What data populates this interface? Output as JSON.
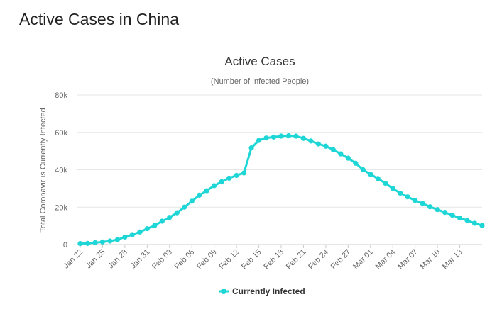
{
  "page": {
    "title": "Active Cases in China"
  },
  "chart_data": {
    "type": "line",
    "title": "Active Cases",
    "subtitle": "(Number of Infected People)",
    "xlabel": "",
    "ylabel": "Total Coronavirus Currently Infected",
    "ylim": [
      0,
      80000
    ],
    "yticks": [
      0,
      20000,
      40000,
      60000,
      80000
    ],
    "ytick_labels": [
      "0",
      "20k",
      "40k",
      "60k",
      "80k"
    ],
    "xtick_labels": [
      "Jan 22",
      "Jan 25",
      "Jan 28",
      "Jan 31",
      "Feb 03",
      "Feb 06",
      "Feb 09",
      "Feb 12",
      "Feb 15",
      "Feb 18",
      "Feb 21",
      "Feb 24",
      "Feb 27",
      "Mar 01",
      "Mar 04",
      "Mar 07",
      "Mar 10",
      "Mar 13"
    ],
    "xtick_every": 3,
    "grid": true,
    "legend": "bottom-center",
    "series": [
      {
        "name": "Currently Infected",
        "color": "#1fd6d6",
        "values": [
          550,
          620,
          1000,
          1400,
          1900,
          2600,
          4000,
          5300,
          6700,
          8500,
          10200,
          12500,
          14500,
          17000,
          20000,
          23200,
          26400,
          28800,
          31500,
          33600,
          35500,
          37000,
          38300,
          51700,
          55700,
          57000,
          57500,
          58000,
          58200,
          58000,
          56800,
          55400,
          53800,
          52600,
          50700,
          48500,
          46200,
          43500,
          40000,
          37600,
          35300,
          32800,
          30000,
          27500,
          25500,
          23600,
          22000,
          20200,
          18700,
          17200,
          15700,
          14200,
          12900,
          11400,
          10200
        ]
      }
    ]
  }
}
